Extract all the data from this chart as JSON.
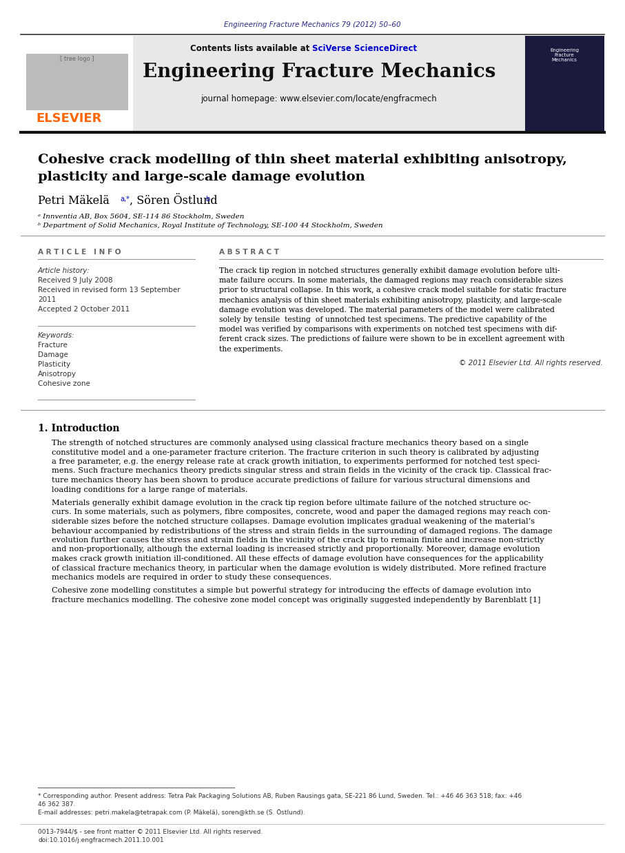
{
  "page_width": 9.07,
  "page_height": 12.38,
  "bg_color": "#ffffff",
  "journal_ref": "Engineering Fracture Mechanics 79 (2012) 50–60",
  "journal_ref_color": "#2b2b8c",
  "header_bg": "#e8e8e8",
  "contents_text": "Contents lists available at ",
  "sciverse_text": "SciVerse ScienceDirect",
  "sciverse_color": "#0000cc",
  "journal_title": "Engineering Fracture Mechanics",
  "journal_homepage": "journal homepage: www.elsevier.com/locate/engfracmech",
  "elsevier_color": "#ff6600",
  "article_title_line1": "Cohesive crack modelling of thin sheet material exhibiting anisotropy,",
  "article_title_line2": "plasticity and large-scale damage evolution",
  "author1": "Petri Mäkelä",
  "author1_sup": "a,*",
  "author2": ", Sören Östlund",
  "author2_sup": "b",
  "affil1": "ᵃ Innventia AB, Box 5604, SE-114 86 Stockholm, Sweden",
  "affil2": "ᵇ Department of Solid Mechanics, Royal Institute of Technology, SE-100 44 Stockholm, Sweden",
  "article_info_header": "A R T I C L E   I N F O",
  "abstract_header": "A B S T R A C T",
  "article_history_label": "Article history:",
  "received": "Received 9 July 2008",
  "revised1": "Received in revised form 13 September",
  "revised2": "2011",
  "accepted": "Accepted 2 October 2011",
  "keywords_label": "Keywords:",
  "keywords": [
    "Fracture",
    "Damage",
    "Plasticity",
    "Anisotropy",
    "Cohesive zone"
  ],
  "abstract_lines": [
    "The crack tip region in notched structures generally exhibit damage evolution before ulti-",
    "mate failure occurs. In some materials, the damaged regions may reach considerable sizes",
    "prior to structural collapse. In this work, a cohesive crack model suitable for static fracture",
    "mechanics analysis of thin sheet materials exhibiting anisotropy, plasticity, and large-scale",
    "damage evolution was developed. The material parameters of the model were calibrated",
    "solely by tensile  testing  of unnotched test specimens. The predictive capability of the",
    "model was verified by comparisons with experiments on notched test specimens with dif-",
    "ferent crack sizes. The predictions of failure were shown to be in excellent agreement with",
    "the experiments."
  ],
  "copyright": "© 2011 Elsevier Ltd. All rights reserved.",
  "section1_title": "1. Introduction",
  "intro1_lines": [
    "The strength of notched structures are commonly analysed using classical fracture mechanics theory based on a single",
    "constitutive model and a one-parameter fracture criterion. The fracture criterion in such theory is calibrated by adjusting",
    "a free parameter, e.g. the energy release rate at crack growth initiation, to experiments performed for notched test speci-",
    "mens. Such fracture mechanics theory predicts singular stress and strain fields in the vicinity of the crack tip. Classical frac-",
    "ture mechanics theory has been shown to produce accurate predictions of failure for various structural dimensions and",
    "loading conditions for a large range of materials."
  ],
  "intro2_lines": [
    "Materials generally exhibit damage evolution in the crack tip region before ultimate failure of the notched structure oc-",
    "curs. In some materials, such as polymers, fibre composites, concrete, wood and paper the damaged regions may reach con-",
    "siderable sizes before the notched structure collapses. Damage evolution implicates gradual weakening of the material’s",
    "behaviour accompanied by redistributions of the stress and strain fields in the surrounding of damaged regions. The damage",
    "evolution further causes the stress and strain fields in the vicinity of the crack tip to remain finite and increase non-strictly",
    "and non-proportionally, although the external loading is increased strictly and proportionally. Moreover, damage evolution",
    "makes crack growth initiation ill-conditioned. All these effects of damage evolution have consequences for the applicability",
    "of classical fracture mechanics theory, in particular when the damage evolution is widely distributed. More refined fracture",
    "mechanics models are required in order to study these consequences."
  ],
  "intro3_lines": [
    "Cohesive zone modelling constitutes a simple but powerful strategy for introducing the effects of damage evolution into",
    "fracture mechanics modelling. The cohesive zone model concept was originally suggested independently by Barenblatt [1]"
  ],
  "footnote_star": "* Corresponding author. Present address: Tetra Pak Packaging Solutions AB, Ruben Rausings gata, SE-221 86 Lund, Sweden. Tel.: +46 46 363 518; fax: +46",
  "footnote_star2": "46 362 387.",
  "footnote_email": "E-mail addresses: petri.makela@tetrapak.com (P. Mäkelä), soren@kth.se (S. Östlund).",
  "footnote_issn": "0013-7944/$ - see front matter © 2011 Elsevier Ltd. All rights reserved.",
  "footnote_doi": "doi:10.1016/j.engfracmech.2011.10.001"
}
